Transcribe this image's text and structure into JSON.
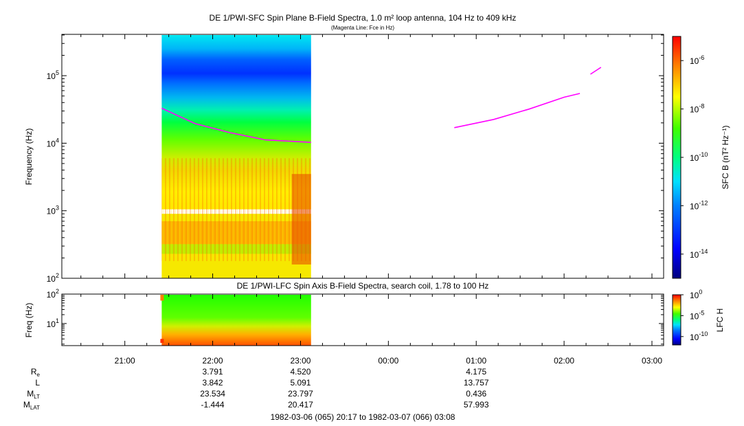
{
  "chart_data": [
    {
      "type": "heatmap",
      "title": "DE 1/PWI-SFC  Spin Plane B-Field Spectra, 1.0 m² loop antenna, 104 Hz to 409 kHz",
      "subtitle": "(Magenta Line: Fce in Hz)",
      "ylabel": "Frequency (Hz)",
      "yscale": "log",
      "ylim": [
        100,
        409000
      ],
      "yticks": [
        {
          "value": 100,
          "base": "10",
          "exp": "2"
        },
        {
          "value": 1000,
          "base": "10",
          "exp": "3"
        },
        {
          "value": 10000,
          "base": "10",
          "exp": "4"
        },
        {
          "value": 100000,
          "base": "10",
          "exp": "5"
        }
      ],
      "data_window_hours": [
        21.42,
        23.12
      ],
      "gap_hz": [
        900,
        1050
      ],
      "colorbar": {
        "label": "SFC B (nT² Hz⁻¹)",
        "scale": "log",
        "range": [
          1e-15,
          1e-05
        ],
        "ticks": [
          {
            "value": 1e-06,
            "base": "10",
            "exp": "-6"
          },
          {
            "value": 1e-08,
            "base": "10",
            "exp": "-8"
          },
          {
            "value": 1e-10,
            "base": "10",
            "exp": "-10"
          },
          {
            "value": 1e-12,
            "base": "10",
            "exp": "-12"
          },
          {
            "value": 1e-14,
            "base": "10",
            "exp": "-14"
          }
        ]
      },
      "fce_segments": [
        {
          "name": "segment-1",
          "points": [
            [
              21.42,
              33000
            ],
            [
              21.8,
              19500
            ],
            [
              22.2,
              14300
            ],
            [
              22.6,
              11200
            ],
            [
              23.12,
              10300
            ]
          ]
        },
        {
          "name": "segment-2",
          "points": [
            [
              24.75,
              17000
            ],
            [
              25.2,
              22500
            ],
            [
              25.6,
              32000
            ],
            [
              26.0,
              48000
            ],
            [
              26.18,
              54500
            ]
          ]
        },
        {
          "name": "segment-3",
          "points": [
            [
              26.3,
              105000
            ],
            [
              26.42,
              133000
            ]
          ]
        }
      ]
    },
    {
      "type": "heatmap",
      "title": "DE 1/PWI-LFC  Spin Axis B-Field Spectra, search coil, 1.78 to 100 Hz",
      "ylabel": "Freq (Hz)",
      "yscale": "log",
      "ylim": [
        1.78,
        100
      ],
      "yticks": [
        {
          "value": 10,
          "base": "10",
          "exp": "1"
        },
        {
          "value": 100,
          "base": "10",
          "exp": "2"
        }
      ],
      "data_window_hours": [
        21.42,
        23.12
      ],
      "colorbar": {
        "label": "LFC H",
        "scale": "log",
        "range": [
          1e-12,
          1
        ],
        "ticks": [
          {
            "value": 1,
            "base": "10",
            "exp": "0"
          },
          {
            "value": 1e-05,
            "base": "10",
            "exp": "-5"
          },
          {
            "value": 1e-10,
            "base": "10",
            "exp": "-10"
          }
        ]
      }
    }
  ],
  "time_axis": {
    "range_hours": [
      20.283,
      27.133
    ],
    "ticks": [
      {
        "hour": 21,
        "label": "21:00"
      },
      {
        "hour": 22,
        "label": "22:00"
      },
      {
        "hour": 23,
        "label": "23:00"
      },
      {
        "hour": 24,
        "label": "00:00"
      },
      {
        "hour": 25,
        "label": "01:00"
      },
      {
        "hour": 26,
        "label": "02:00"
      },
      {
        "hour": 27,
        "label": "03:00"
      }
    ]
  },
  "ephemeris": {
    "rows": [
      {
        "name": "R",
        "sub": "e",
        "values": [
          {
            "hour": 22,
            "text": "3.791"
          },
          {
            "hour": 23,
            "text": "4.520"
          },
          {
            "hour": 25,
            "text": "4.175"
          }
        ]
      },
      {
        "name": "L",
        "sub": "",
        "values": [
          {
            "hour": 22,
            "text": "3.842"
          },
          {
            "hour": 23,
            "text": "5.091"
          },
          {
            "hour": 25,
            "text": "13.757"
          }
        ]
      },
      {
        "name": "M",
        "sub": "LT",
        "values": [
          {
            "hour": 22,
            "text": "23.534"
          },
          {
            "hour": 23,
            "text": "23.797"
          },
          {
            "hour": 25,
            "text": "0.436"
          }
        ]
      },
      {
        "name": "M",
        "sub": "LAT",
        "values": [
          {
            "hour": 22,
            "text": "-1.444"
          },
          {
            "hour": 23,
            "text": "20.417"
          },
          {
            "hour": 25,
            "text": "57.993"
          }
        ]
      }
    ]
  },
  "footer": {
    "time_range": "1982-03-06 (065) 20:17 to 1982-03-07 (066) 03:08"
  }
}
